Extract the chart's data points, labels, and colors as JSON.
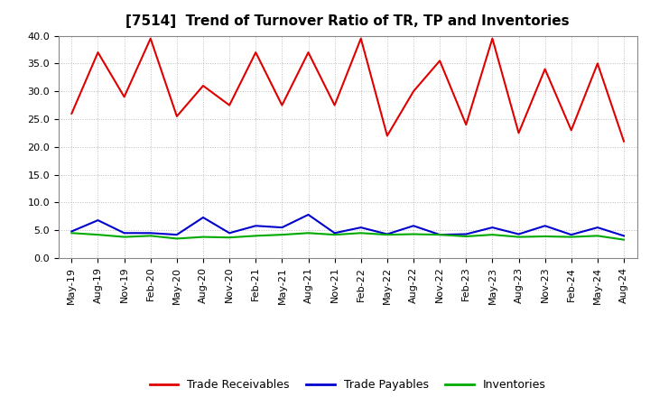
{
  "title": "[7514]  Trend of Turnover Ratio of TR, TP and Inventories",
  "x_labels": [
    "May-19",
    "Aug-19",
    "Nov-19",
    "Feb-20",
    "May-20",
    "Aug-20",
    "Nov-20",
    "Feb-21",
    "May-21",
    "Aug-21",
    "Nov-21",
    "Feb-22",
    "May-22",
    "Aug-22",
    "Nov-22",
    "Feb-23",
    "May-23",
    "Aug-23",
    "Nov-23",
    "Feb-24",
    "May-24",
    "Aug-24"
  ],
  "trade_receivables": [
    26.0,
    37.0,
    29.0,
    39.5,
    25.5,
    31.0,
    27.5,
    37.0,
    27.5,
    37.0,
    27.5,
    39.5,
    22.0,
    30.0,
    35.5,
    24.0,
    39.5,
    22.5,
    34.0,
    23.0,
    35.0,
    21.0
  ],
  "trade_payables": [
    4.8,
    6.8,
    4.5,
    4.5,
    4.2,
    7.3,
    4.5,
    5.8,
    5.5,
    7.8,
    4.5,
    5.5,
    4.3,
    5.8,
    4.2,
    4.3,
    5.5,
    4.3,
    5.8,
    4.2,
    5.5,
    4.0
  ],
  "inventories": [
    4.5,
    4.2,
    3.8,
    4.0,
    3.5,
    3.8,
    3.7,
    4.0,
    4.2,
    4.5,
    4.2,
    4.5,
    4.2,
    4.3,
    4.2,
    3.9,
    4.2,
    3.8,
    3.9,
    3.8,
    4.0,
    3.3
  ],
  "tr_color": "#e00000",
  "tp_color": "#0000cc",
  "inv_color": "#00aa00",
  "ylim": [
    0.0,
    40.0
  ],
  "yticks": [
    0.0,
    5.0,
    10.0,
    15.0,
    20.0,
    25.0,
    30.0,
    35.0,
    40.0
  ],
  "legend_labels": [
    "Trade Receivables",
    "Trade Payables",
    "Inventories"
  ],
  "background_color": "#ffffff",
  "grid_color": "#bbbbbb",
  "title_fontsize": 11,
  "tick_fontsize": 8,
  "legend_fontsize": 9
}
